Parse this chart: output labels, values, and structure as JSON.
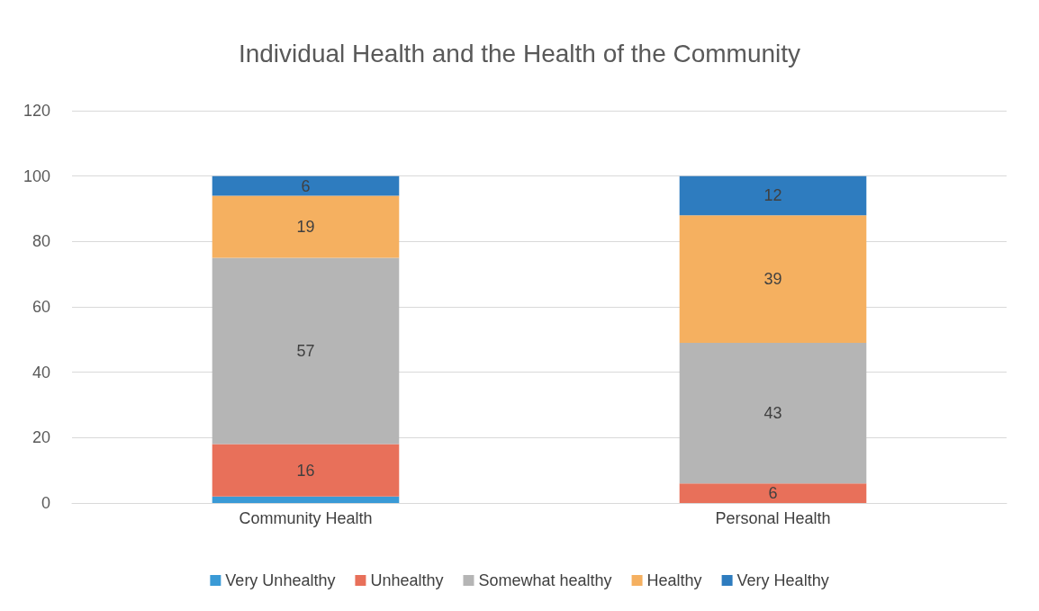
{
  "chart_data": {
    "type": "bar",
    "title": "Individual Health and the Health of the Community",
    "categories": [
      "Community Health",
      "Personal Health"
    ],
    "stacked": true,
    "series": [
      {
        "name": "Very Unhealthy",
        "color": "#3a9ad6",
        "values": [
          2,
          0
        ],
        "value_labels": [
          null,
          null
        ]
      },
      {
        "name": "Unhealthy",
        "color": "#e8705a",
        "values": [
          16,
          6
        ],
        "value_labels": [
          "16",
          "6"
        ]
      },
      {
        "name": "Somewhat healthy",
        "color": "#b5b5b5",
        "values": [
          57,
          43
        ],
        "value_labels": [
          "57",
          "43"
        ]
      },
      {
        "name": "Healthy",
        "color": "#f5b060",
        "values": [
          19,
          39
        ],
        "value_labels": [
          "19",
          "39"
        ]
      },
      {
        "name": "Very Healthy",
        "color": "#2e7cbf",
        "values": [
          6,
          12
        ],
        "value_labels": [
          "6",
          "12"
        ]
      }
    ],
    "ylim": [
      0,
      120
    ],
    "yticks": [
      0,
      20,
      40,
      60,
      80,
      100,
      120
    ],
    "grid": "y",
    "legend": "bottom"
  }
}
